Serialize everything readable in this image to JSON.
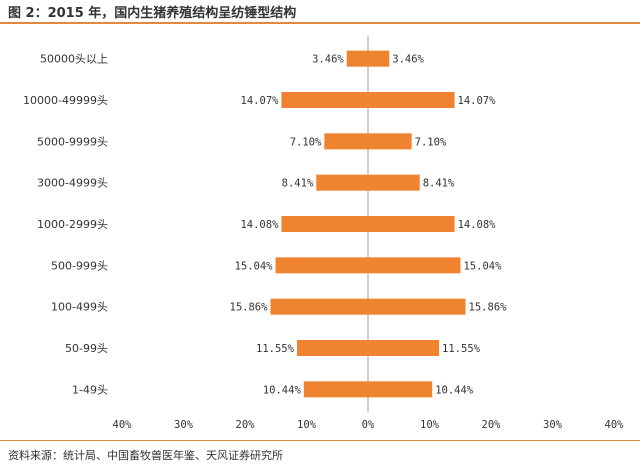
{
  "title": "图 2：2015 年，国内生猪养殖结构呈纺锤型结构",
  "source": "资料来源：统计局、中国畜牧兽医年鉴、天风证券研究所",
  "colors": {
    "bar": "#f0832f",
    "axis": "#a0a0a0",
    "rule": "#e08a3c",
    "text": "#333333"
  },
  "chart_data": {
    "type": "bar",
    "orientation": "horizontal-mirrored",
    "categories": [
      "50000头以上",
      "10000-49999头",
      "5000-9999头",
      "3000-4999头",
      "1000-2999头",
      "500-999头",
      "100-499头",
      "50-99头",
      "1-49头"
    ],
    "series": [
      {
        "values": [
          -3.46,
          -14.07,
          -7.1,
          -8.41,
          -14.08,
          -15.04,
          -15.86,
          -11.55,
          -10.44
        ]
      },
      {
        "values": [
          3.46,
          14.07,
          7.1,
          8.41,
          14.08,
          15.04,
          15.86,
          11.55,
          10.44
        ]
      }
    ],
    "data_labels_left": [
      "3.46%",
      "14.07%",
      "7.10%",
      "8.41%",
      "14.08%",
      "15.04%",
      "15.86%",
      "11.55%",
      "10.44%"
    ],
    "data_labels_right": [
      "3.46%",
      "14.07%",
      "7.10%",
      "8.41%",
      "14.08%",
      "15.04%",
      "15.86%",
      "11.55%",
      "10.44%"
    ],
    "xlim": [
      -40,
      40
    ],
    "x_ticks": [
      -40,
      -30,
      -20,
      -10,
      0,
      10,
      20,
      30,
      40
    ],
    "x_tick_labels": [
      "40%",
      "30%",
      "20%",
      "10%",
      "0%",
      "10%",
      "20%",
      "30%",
      "40%"
    ],
    "grid": false,
    "legend": "none"
  }
}
